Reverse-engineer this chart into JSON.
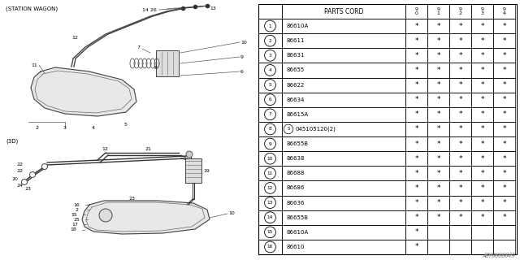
{
  "bg_color": "#ffffff",
  "diagram_label_top": "(STATION WAGON)",
  "diagram_label_bottom": "(3D)",
  "part_code_header": "PARTS CORD",
  "year_headers": [
    "9\n0",
    "9\n1",
    "9\n2",
    "9\n3",
    "9\n4"
  ],
  "rows": [
    {
      "num": "1",
      "code": "86610A",
      "marks": [
        1,
        1,
        1,
        1,
        1
      ]
    },
    {
      "num": "2",
      "code": "86611",
      "marks": [
        1,
        1,
        1,
        1,
        1
      ]
    },
    {
      "num": "3",
      "code": "86631",
      "marks": [
        1,
        1,
        1,
        1,
        1
      ]
    },
    {
      "num": "4",
      "code": "86655",
      "marks": [
        1,
        1,
        1,
        1,
        1
      ]
    },
    {
      "num": "5",
      "code": "86622",
      "marks": [
        1,
        1,
        1,
        1,
        1
      ]
    },
    {
      "num": "6",
      "code": "86634",
      "marks": [
        1,
        1,
        1,
        1,
        1
      ]
    },
    {
      "num": "7",
      "code": "86615A",
      "marks": [
        1,
        1,
        1,
        1,
        1
      ]
    },
    {
      "num": "8",
      "code": "045105120(2)",
      "marks": [
        1,
        1,
        1,
        1,
        1
      ]
    },
    {
      "num": "9",
      "code": "86655B",
      "marks": [
        1,
        1,
        1,
        1,
        1
      ]
    },
    {
      "num": "10",
      "code": "86638",
      "marks": [
        1,
        1,
        1,
        1,
        1
      ]
    },
    {
      "num": "11",
      "code": "86688",
      "marks": [
        1,
        1,
        1,
        1,
        1
      ]
    },
    {
      "num": "12",
      "code": "86686",
      "marks": [
        1,
        1,
        1,
        1,
        1
      ]
    },
    {
      "num": "13",
      "code": "86636",
      "marks": [
        1,
        1,
        1,
        1,
        1
      ]
    },
    {
      "num": "14",
      "code": "86655B",
      "marks": [
        1,
        1,
        1,
        1,
        1
      ]
    },
    {
      "num": "15",
      "code": "86610A",
      "marks": [
        1,
        0,
        0,
        0,
        0
      ]
    },
    {
      "num": "16",
      "code": "86610",
      "marks": [
        1,
        0,
        0,
        0,
        0
      ]
    }
  ],
  "footer": "A876000045"
}
